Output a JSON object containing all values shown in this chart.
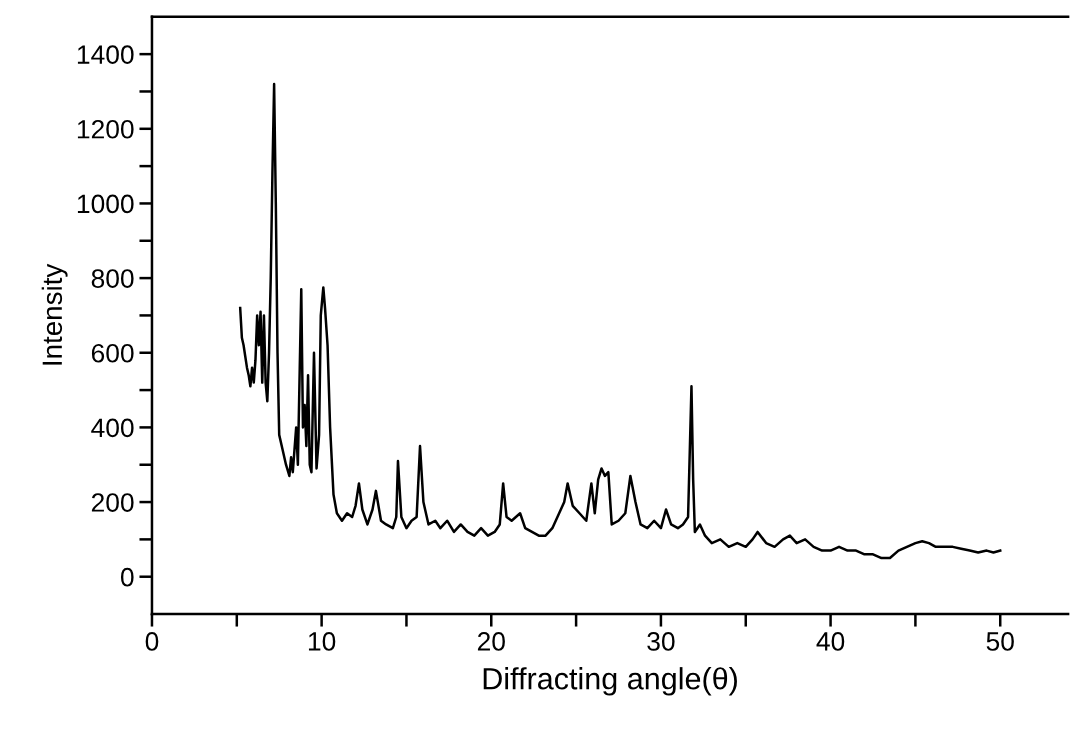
{
  "chart_data": {
    "type": "line",
    "xlabel": "Diffracting angle(θ)",
    "ylabel": "Intensity",
    "xlim": [
      0,
      54
    ],
    "ylim": [
      -100,
      1500
    ],
    "xticks": [
      0,
      {
        "value": 5,
        "label": null
      },
      10,
      {
        "value": 15,
        "label": null
      },
      20,
      {
        "value": 25,
        "label": null
      },
      30,
      {
        "value": 35,
        "label": null
      },
      40,
      {
        "value": 45,
        "label": null
      },
      50
    ],
    "yticks": [
      0,
      {
        "value": 100,
        "label": null
      },
      200,
      {
        "value": 300,
        "label": null
      },
      400,
      {
        "value": 500,
        "label": null
      },
      600,
      {
        "value": 700,
        "label": null
      },
      800,
      {
        "value": 900,
        "label": null
      },
      1000,
      {
        "value": 1100,
        "label": null
      },
      1200,
      {
        "value": 1300,
        "label": null
      },
      1400
    ],
    "grid": false,
    "legend": false,
    "marker": "none",
    "line_style": "solid",
    "series": [
      {
        "color": "#000000",
        "x": [
          5.2,
          5.25,
          5.3,
          5.4,
          5.5,
          5.6,
          5.7,
          5.8,
          5.9,
          6.0,
          6.1,
          6.2,
          6.3,
          6.4,
          6.5,
          6.6,
          6.7,
          6.8,
          6.9,
          7.0,
          7.1,
          7.2,
          7.3,
          7.4,
          7.5,
          7.7,
          7.9,
          8.1,
          8.2,
          8.3,
          8.5,
          8.6,
          8.8,
          8.9,
          9.0,
          9.1,
          9.2,
          9.3,
          9.4,
          9.55,
          9.7,
          9.85,
          9.95,
          10.1,
          10.2,
          10.35,
          10.5,
          10.7,
          10.9,
          11.2,
          11.5,
          11.8,
          12.0,
          12.2,
          12.4,
          12.7,
          13.0,
          13.2,
          13.5,
          13.8,
          14.2,
          14.4,
          14.5,
          14.7,
          15.0,
          15.3,
          15.6,
          15.8,
          16.0,
          16.3,
          16.7,
          17.0,
          17.4,
          17.8,
          18.2,
          18.6,
          19.0,
          19.4,
          19.8,
          20.2,
          20.5,
          20.7,
          20.9,
          21.2,
          21.7,
          22.0,
          22.4,
          22.8,
          23.2,
          23.6,
          24.0,
          24.3,
          24.5,
          24.8,
          25.2,
          25.6,
          25.9,
          26.1,
          26.3,
          26.5,
          26.7,
          26.9,
          27.1,
          27.5,
          27.9,
          28.2,
          28.5,
          28.8,
          29.2,
          29.6,
          30.0,
          30.3,
          30.6,
          31.0,
          31.3,
          31.6,
          31.8,
          31.9,
          32.0,
          32.3,
          32.6,
          33.0,
          33.5,
          34.0,
          34.5,
          35.0,
          35.4,
          35.7,
          36.2,
          36.7,
          37.2,
          37.6,
          38.0,
          38.5,
          39.0,
          39.5,
          40.0,
          40.5,
          41.0,
          41.5,
          42.0,
          42.5,
          43.0,
          43.5,
          44.0,
          44.5,
          45.0,
          45.4,
          45.8,
          46.2,
          46.7,
          47.2,
          47.7,
          48.2,
          48.7,
          49.2,
          49.6,
          50.0
        ],
        "values": [
          720,
          680,
          640,
          620,
          590,
          560,
          540,
          510,
          560,
          520,
          580,
          700,
          620,
          710,
          520,
          700,
          520,
          470,
          600,
          800,
          1080,
          1320,
          1000,
          600,
          380,
          340,
          300,
          270,
          320,
          280,
          400,
          300,
          770,
          400,
          460,
          350,
          540,
          300,
          280,
          600,
          290,
          380,
          700,
          775,
          720,
          620,
          400,
          220,
          170,
          150,
          170,
          160,
          190,
          250,
          180,
          140,
          180,
          230,
          150,
          140,
          130,
          160,
          310,
          160,
          130,
          150,
          160,
          350,
          200,
          140,
          150,
          130,
          150,
          120,
          140,
          120,
          110,
          130,
          110,
          120,
          140,
          250,
          160,
          150,
          170,
          130,
          120,
          110,
          110,
          130,
          170,
          200,
          250,
          190,
          170,
          150,
          250,
          170,
          260,
          290,
          270,
          280,
          140,
          150,
          170,
          270,
          200,
          140,
          130,
          150,
          130,
          180,
          140,
          130,
          140,
          160,
          510,
          260,
          120,
          140,
          110,
          90,
          100,
          80,
          90,
          80,
          100,
          120,
          90,
          80,
          100,
          110,
          90,
          100,
          80,
          70,
          70,
          80,
          70,
          70,
          60,
          60,
          50,
          50,
          70,
          80,
          90,
          95,
          90,
          80,
          80,
          80,
          75,
          70,
          65,
          70,
          65,
          70
        ]
      }
    ]
  }
}
